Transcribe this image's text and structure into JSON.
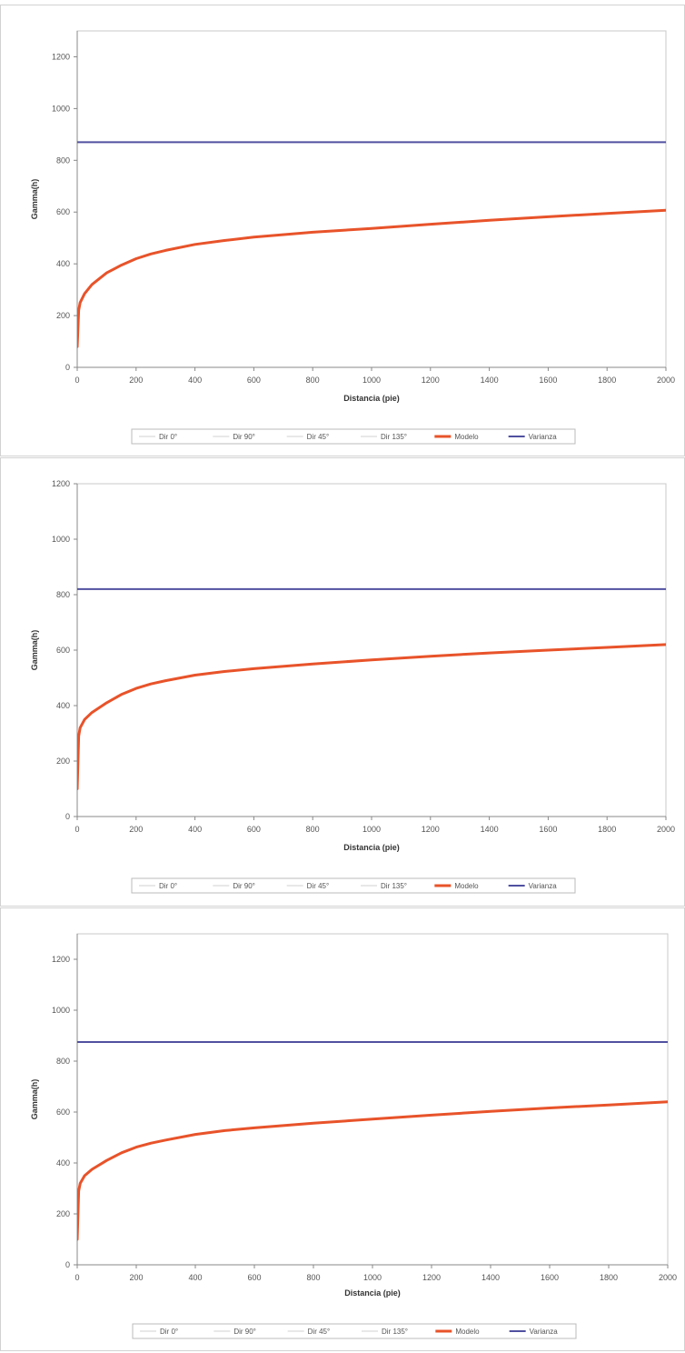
{
  "chart_data": [
    {
      "type": "line",
      "xlabel": "Distancia (pie)",
      "ylabel": "Gamma(h)",
      "xlim": [
        0,
        2000
      ],
      "ylim": [
        0,
        1300
      ],
      "x_ticks": [
        0,
        200,
        400,
        600,
        800,
        1000,
        1200,
        1400,
        1600,
        1800,
        2000
      ],
      "y_ticks": [
        0,
        200,
        400,
        600,
        800,
        1000,
        1200
      ],
      "legend_position": "bottom",
      "grid": false,
      "series": [
        {
          "name": "Dir 0°",
          "color": "#d0d0d0",
          "width": 1,
          "x": [],
          "y": []
        },
        {
          "name": "Dir 90°",
          "color": "#d0d0d0",
          "width": 1,
          "x": [],
          "y": []
        },
        {
          "name": "Dir 45°",
          "color": "#d0d0d0",
          "width": 1,
          "x": [],
          "y": []
        },
        {
          "name": "Dir 135°",
          "color": "#d0d0d0",
          "width": 1,
          "x": [],
          "y": []
        },
        {
          "name": "Modelo",
          "color": "#e8532a",
          "width": 3,
          "x": [
            0,
            5,
            10,
            25,
            50,
            100,
            150,
            200,
            250,
            300,
            400,
            500,
            600,
            800,
            1000,
            1200,
            1400,
            1600,
            1800,
            2000
          ],
          "y": [
            80,
            220,
            250,
            285,
            320,
            365,
            395,
            420,
            438,
            452,
            475,
            490,
            503,
            522,
            537,
            553,
            568,
            582,
            595,
            607
          ]
        },
        {
          "name": "Varianza",
          "color": "#5050a0",
          "width": 2,
          "x": [
            0,
            2000
          ],
          "y": [
            870,
            870
          ]
        }
      ]
    },
    {
      "type": "line",
      "xlabel": "Distancia (pie)",
      "ylabel": "Gamma(h)",
      "xlim": [
        0,
        2000
      ],
      "ylim": [
        0,
        1200
      ],
      "x_ticks": [
        0,
        200,
        400,
        600,
        800,
        1000,
        1200,
        1400,
        1600,
        1800,
        2000
      ],
      "y_ticks": [
        0,
        200,
        400,
        600,
        800,
        1000,
        1200
      ],
      "legend_position": "bottom",
      "grid": false,
      "series": [
        {
          "name": "Dir 0°",
          "color": "#d0d0d0",
          "width": 1,
          "x": [],
          "y": []
        },
        {
          "name": "Dir 90°",
          "color": "#d0d0d0",
          "width": 1,
          "x": [],
          "y": []
        },
        {
          "name": "Dir 45°",
          "color": "#d0d0d0",
          "width": 1,
          "x": [],
          "y": []
        },
        {
          "name": "Dir 135°",
          "color": "#d0d0d0",
          "width": 1,
          "x": [],
          "y": []
        },
        {
          "name": "Modelo",
          "color": "#e8532a",
          "width": 3,
          "x": [
            0,
            5,
            10,
            25,
            50,
            100,
            150,
            200,
            250,
            300,
            400,
            500,
            600,
            800,
            1000,
            1200,
            1400,
            1600,
            1800,
            2000
          ],
          "y": [
            100,
            290,
            320,
            350,
            375,
            410,
            440,
            462,
            478,
            490,
            510,
            523,
            533,
            550,
            565,
            578,
            590,
            600,
            610,
            620
          ]
        },
        {
          "name": "Varianza",
          "color": "#5050a0",
          "width": 2,
          "x": [
            0,
            2000
          ],
          "y": [
            820,
            820
          ]
        }
      ]
    },
    {
      "type": "line",
      "xlabel": "Distancia (pie)",
      "ylabel": "Gamma(h)",
      "xlim": [
        0,
        2000
      ],
      "ylim": [
        0,
        1300
      ],
      "x_ticks": [
        0,
        200,
        400,
        600,
        800,
        1000,
        1200,
        1400,
        1600,
        1800,
        2000
      ],
      "y_ticks": [
        0,
        200,
        400,
        600,
        800,
        1000,
        1200
      ],
      "legend_position": "bottom",
      "grid": false,
      "series": [
        {
          "name": "Dir 0°",
          "color": "#d0d0d0",
          "width": 1,
          "x": [],
          "y": []
        },
        {
          "name": "Dir 90°",
          "color": "#d0d0d0",
          "width": 1,
          "x": [],
          "y": []
        },
        {
          "name": "Dir 45°",
          "color": "#d0d0d0",
          "width": 1,
          "x": [],
          "y": []
        },
        {
          "name": "Dir 135°",
          "color": "#d0d0d0",
          "width": 1,
          "x": [],
          "y": []
        },
        {
          "name": "Modelo",
          "color": "#e8532a",
          "width": 3,
          "x": [
            0,
            5,
            10,
            25,
            50,
            100,
            150,
            200,
            250,
            300,
            400,
            500,
            600,
            800,
            1000,
            1200,
            1400,
            1600,
            1800,
            2000
          ],
          "y": [
            100,
            290,
            320,
            350,
            375,
            410,
            440,
            462,
            478,
            490,
            512,
            527,
            538,
            556,
            572,
            588,
            603,
            616,
            628,
            640
          ]
        },
        {
          "name": "Varianza",
          "color": "#5050a0",
          "width": 2,
          "x": [
            0,
            2000
          ],
          "y": [
            875,
            875
          ]
        }
      ]
    }
  ]
}
